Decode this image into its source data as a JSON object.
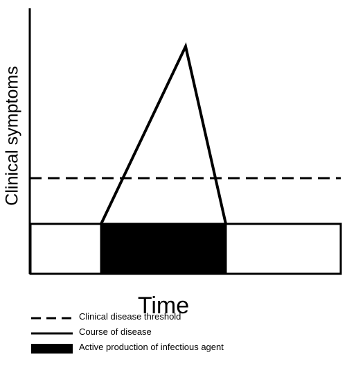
{
  "diagram": {
    "y_axis_label": "Clinical symptoms",
    "x_axis_label": "Time"
  },
  "legend": {
    "items": [
      {
        "label": "Clinical disease threshold"
      },
      {
        "label": "Course of disease"
      },
      {
        "label": "Active production of infectious agent"
      }
    ]
  },
  "colors": {
    "line": "#000000",
    "fill": "#000000",
    "background": "#ffffff"
  }
}
